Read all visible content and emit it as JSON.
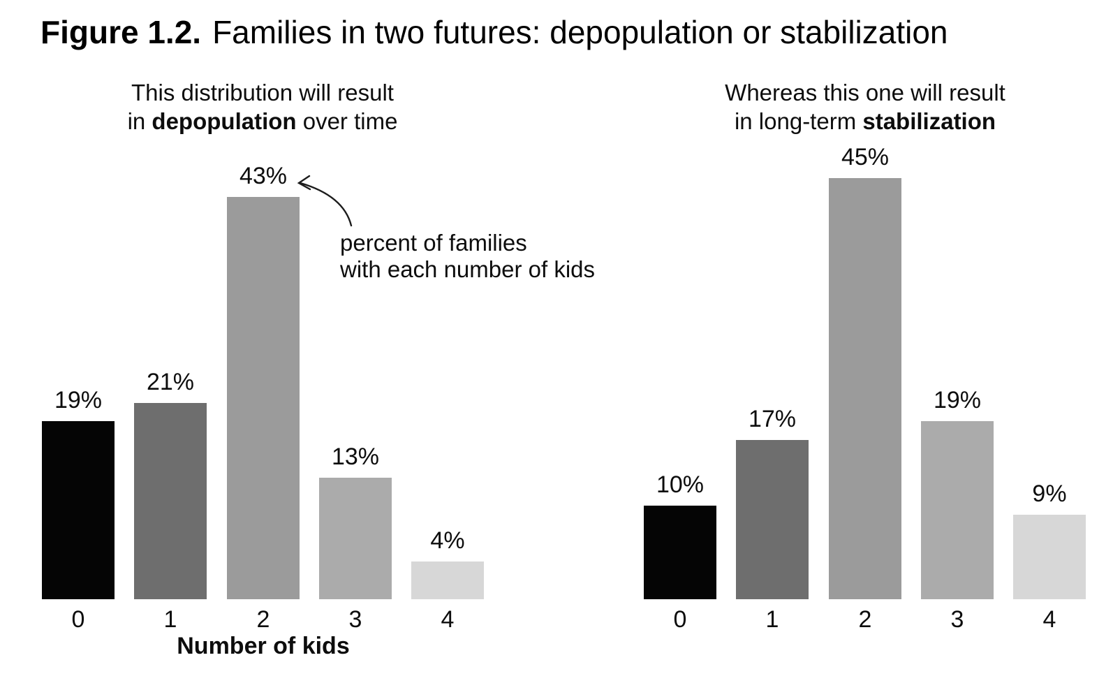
{
  "figure": {
    "label": "Figure 1.2.",
    "title": "Families in two futures: depopulation or stabilization"
  },
  "annotation": {
    "lines": [
      "percent of families",
      "with each number of kids"
    ],
    "points_to": "43%"
  },
  "chart_data": [
    {
      "type": "bar",
      "side": "left",
      "subtitle_segments": [
        [
          {
            "text": "This distribution will result",
            "bold": false
          }
        ],
        [
          {
            "text": "in ",
            "bold": false
          },
          {
            "text": "depopulation",
            "bold": true
          },
          {
            "text": " over time",
            "bold": false
          }
        ]
      ],
      "categories": [
        "0",
        "1",
        "2",
        "3",
        "4"
      ],
      "values": [
        19,
        21,
        43,
        13,
        4
      ],
      "value_labels": [
        "19%",
        "21%",
        "43%",
        "13%",
        "4%"
      ],
      "xlabel": "Number of kids",
      "ylabel": "",
      "ylim": [
        0,
        45
      ],
      "grid": false,
      "unit": "percent of families"
    },
    {
      "type": "bar",
      "side": "right",
      "subtitle_segments": [
        [
          {
            "text": "Whereas this one will result",
            "bold": false
          }
        ],
        [
          {
            "text": "in long-term ",
            "bold": false
          },
          {
            "text": "stabilization",
            "bold": true
          }
        ]
      ],
      "categories": [
        "0",
        "1",
        "2",
        "3",
        "4"
      ],
      "values": [
        10,
        17,
        45,
        19,
        9
      ],
      "value_labels": [
        "10%",
        "17%",
        "45%",
        "19%",
        "9%"
      ],
      "xlabel": "",
      "ylabel": "",
      "ylim": [
        0,
        45
      ],
      "grid": false,
      "unit": "percent of families"
    }
  ],
  "style": {
    "bar_colors": [
      "#050505",
      "#6e6e6e",
      "#9b9b9b",
      "#ababab",
      "#d7d7d7"
    ],
    "background": "#ffffff",
    "text_color": "#0d0d0d",
    "arrow_color": "#1c1c1c"
  }
}
